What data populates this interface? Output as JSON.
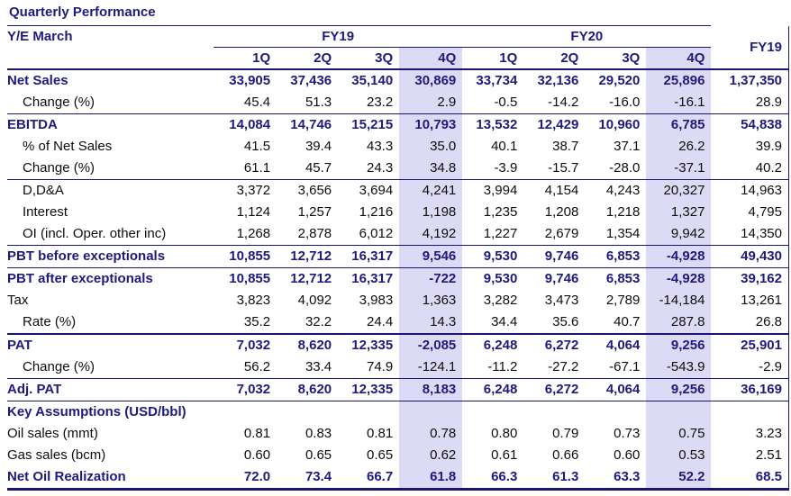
{
  "title": "Quarterly Performance",
  "colors": {
    "navy_text": "#1e1b7b",
    "black_text": "#0d0d0d",
    "line_navy": "#181573",
    "highlight_lavender": "#dcdaf4"
  },
  "header": {
    "row_label": "Y/E March",
    "groups": [
      {
        "label": "FY19",
        "span": 4
      },
      {
        "label": "FY20",
        "span": 4
      }
    ],
    "annual_label": "FY19",
    "quarters": [
      "1Q",
      "2Q",
      "3Q",
      "4Q",
      "1Q",
      "2Q",
      "3Q",
      "4Q"
    ],
    "highlight_quarter_indexes": [
      3,
      7
    ]
  },
  "rows": [
    {
      "label": "Net Sales",
      "style": "bold",
      "border": "none",
      "values": [
        "33,905",
        "37,436",
        "35,140",
        "30,869",
        "33,734",
        "32,136",
        "29,520",
        "25,896",
        "1,37,350"
      ]
    },
    {
      "label": "Change (%)",
      "style": "indent",
      "border": "thin",
      "values": [
        "45.4",
        "51.3",
        "23.2",
        "2.9",
        "-0.5",
        "-14.2",
        "-16.0",
        "-16.1",
        "28.9"
      ]
    },
    {
      "label": "EBITDA",
      "style": "bold",
      "border": "none",
      "values": [
        "14,084",
        "14,746",
        "15,215",
        "10,793",
        "13,532",
        "12,429",
        "10,960",
        "6,785",
        "54,838"
      ]
    },
    {
      "label": "% of Net Sales",
      "style": "indent",
      "border": "none",
      "values": [
        "41.5",
        "39.4",
        "43.3",
        "35.0",
        "40.1",
        "38.7",
        "37.1",
        "26.2",
        "39.9"
      ]
    },
    {
      "label": "Change (%)",
      "style": "indent",
      "border": "thin",
      "values": [
        "61.1",
        "45.7",
        "24.3",
        "34.8",
        "-3.9",
        "-15.7",
        "-28.0",
        "-37.1",
        "40.2"
      ]
    },
    {
      "label": "D,D&A",
      "style": "indent",
      "border": "none",
      "values": [
        "3,372",
        "3,656",
        "3,694",
        "4,241",
        "3,994",
        "4,154",
        "4,243",
        "20,327",
        "14,963"
      ]
    },
    {
      "label": "Interest",
      "style": "indent",
      "border": "none",
      "values": [
        "1,124",
        "1,257",
        "1,216",
        "1,198",
        "1,235",
        "1,208",
        "1,218",
        "1,327",
        "4,795"
      ]
    },
    {
      "label": "OI (incl. Oper. other inc)",
      "style": "indent",
      "border": "thin",
      "values": [
        "1,268",
        "2,878",
        "6,012",
        "4,192",
        "1,227",
        "2,679",
        "1,354",
        "9,942",
        "14,350"
      ]
    },
    {
      "label": "PBT before exceptionals",
      "style": "bold",
      "border": "thin",
      "values": [
        "10,855",
        "12,712",
        "16,317",
        "9,546",
        "9,530",
        "9,746",
        "6,853",
        "-4,928",
        "49,430"
      ]
    },
    {
      "label": "PBT after exceptionals",
      "style": "bold",
      "border": "none",
      "values": [
        "10,855",
        "12,712",
        "16,317",
        "-722",
        "9,530",
        "9,746",
        "6,853",
        "-4,928",
        "39,162"
      ]
    },
    {
      "label": "Tax",
      "style": "plain",
      "border": "none",
      "values": [
        "3,823",
        "4,092",
        "3,983",
        "1,363",
        "3,282",
        "3,473",
        "2,789",
        "-14,184",
        "13,261"
      ]
    },
    {
      "label": "Rate (%)",
      "style": "indent",
      "border": "thick",
      "values": [
        "35.2",
        "32.2",
        "24.4",
        "14.3",
        "34.4",
        "35.6",
        "40.7",
        "287.8",
        "26.8"
      ]
    },
    {
      "label": "PAT",
      "style": "bold",
      "border": "none",
      "values": [
        "7,032",
        "8,620",
        "12,335",
        "-2,085",
        "6,248",
        "6,272",
        "4,064",
        "9,256",
        "25,901"
      ]
    },
    {
      "label": "Change (%)",
      "style": "indent",
      "border": "thin",
      "values": [
        "56.2",
        "33.4",
        "74.9",
        "-124.1",
        "-11.2",
        "-27.2",
        "-67.1",
        "-543.9",
        "-2.9"
      ]
    },
    {
      "label": "Adj. PAT",
      "style": "bold",
      "border": "thin",
      "values": [
        "7,032",
        "8,620",
        "12,335",
        "8,183",
        "6,248",
        "6,272",
        "4,064",
        "9,256",
        "36,169"
      ]
    },
    {
      "label": "Key Assumptions (USD/bbl)",
      "style": "bold",
      "border": "none",
      "values": [
        "",
        "",
        "",
        "",
        "",
        "",
        "",
        "",
        ""
      ]
    },
    {
      "label": "Oil sales (mmt)",
      "style": "plain",
      "border": "none",
      "values": [
        "0.81",
        "0.83",
        "0.81",
        "0.78",
        "0.80",
        "0.79",
        "0.73",
        "0.75",
        "3.23"
      ]
    },
    {
      "label": "Gas sales (bcm)",
      "style": "plain",
      "border": "none",
      "values": [
        "0.60",
        "0.65",
        "0.65",
        "0.62",
        "0.61",
        "0.66",
        "0.60",
        "0.53",
        "2.51"
      ]
    },
    {
      "label": "Net Oil Realization",
      "style": "bold",
      "border": "bottom",
      "values": [
        "72.0",
        "73.4",
        "66.7",
        "61.8",
        "66.3",
        "61.3",
        "63.3",
        "52.2",
        "68.5"
      ]
    }
  ]
}
